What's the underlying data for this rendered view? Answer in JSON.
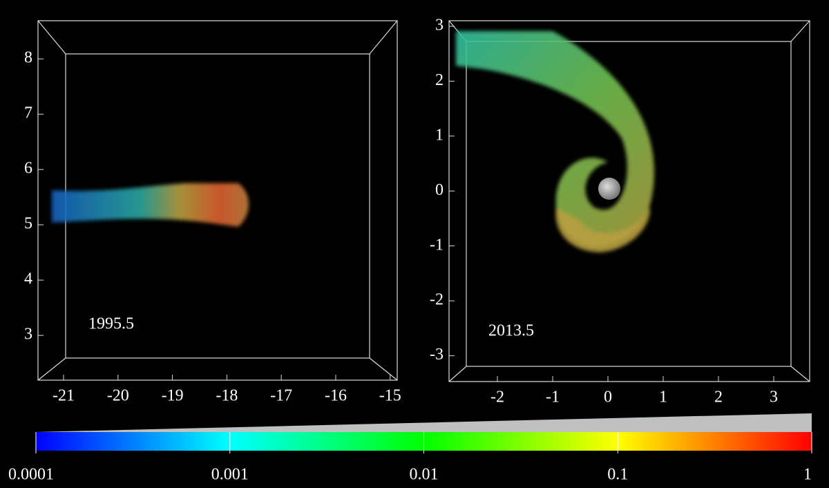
{
  "chart_data": [
    {
      "type": "volume",
      "annotation": "1995.5",
      "xlim": [
        -21.47,
        -14.87
      ],
      "xticks": [
        -21,
        -20,
        -19,
        -18,
        -17,
        -16,
        -15
      ],
      "ylim": [
        2.19,
        8.69
      ],
      "yticks": [
        3,
        4,
        5,
        6,
        7,
        8
      ]
    },
    {
      "type": "volume",
      "annotation": "2013.5",
      "xlim": [
        -2.875,
        3.65
      ],
      "xticks": [
        -2,
        -1,
        0,
        1,
        2,
        3
      ],
      "ylim": [
        -3.47,
        3.1
      ],
      "yticks": [
        -3,
        -2,
        -1,
        0,
        1,
        2,
        3
      ]
    },
    {
      "type": "colorbar",
      "log_scale": true,
      "xlim": [
        0.0001,
        1
      ],
      "xticks": [
        0.0001,
        0.001,
        0.01,
        0.1,
        1
      ],
      "colors": [
        "#0000ff",
        "#00ffff",
        "#00ff00",
        "#ffff00",
        "#ff0000"
      ]
    }
  ]
}
